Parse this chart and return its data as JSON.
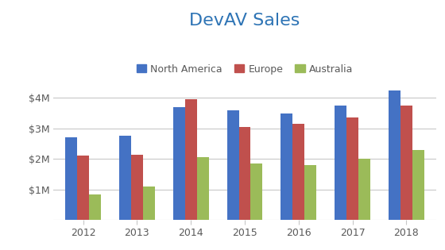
{
  "title": "DevAV Sales",
  "title_color": "#2E74B5",
  "title_fontsize": 16,
  "categories": [
    2012,
    2013,
    2014,
    2015,
    2016,
    2017,
    2018
  ],
  "series": {
    "North America": [
      2700000,
      2750000,
      3700000,
      3600000,
      3500000,
      3750000,
      4250000
    ],
    "Europe": [
      2100000,
      2130000,
      3950000,
      3050000,
      3150000,
      3350000,
      3750000
    ],
    "Australia": [
      850000,
      1100000,
      2050000,
      1850000,
      1800000,
      2000000,
      2300000
    ]
  },
  "colors": {
    "North America": "#4472C4",
    "Europe": "#C0504D",
    "Australia": "#9BBB59"
  },
  "ylim": [
    0,
    4750000
  ],
  "yticks": [
    0,
    1000000,
    2000000,
    3000000,
    4000000
  ],
  "ytick_labels": [
    "",
    "$1M",
    "$2M",
    "$3M",
    "$4M"
  ],
  "background_color": "#FFFFFF",
  "grid_color": "#C8C8C8",
  "bar_width": 0.22,
  "legend_fontsize": 9,
  "axis_label_color": "#595959",
  "tick_label_fontsize": 9
}
